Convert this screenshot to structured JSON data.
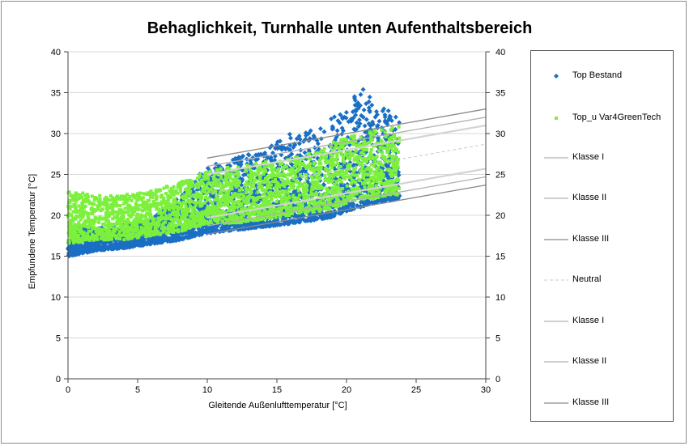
{
  "chart_data": {
    "type": "scatter",
    "title": "Behaglichkeit, Turnhalle unten Aufenthaltsbereich",
    "xlabel": "Gleitende Außenlufttemperatur  [°C]",
    "ylabel": "Empfundene Temperatur  [°C]",
    "xlim": [
      0,
      30
    ],
    "ylim": [
      0,
      40
    ],
    "xticks": [
      "0",
      "5",
      "10",
      "15",
      "20",
      "25",
      "30"
    ],
    "yticks": [
      "0",
      "5",
      "10",
      "15",
      "20",
      "25",
      "30",
      "35",
      "40"
    ],
    "y2ticks": [
      "0",
      "5",
      "10",
      "15",
      "20",
      "25",
      "30",
      "35",
      "40"
    ],
    "grid": "horizontal",
    "legend_position": "right",
    "colors": {
      "top_bestand": "#1a6fc4",
      "top_u": "#7cf03c",
      "klasse_i": "#d3d3d3",
      "klasse_ii": "#b0b0b0",
      "klasse_iii": "#8a8a8a",
      "neutral": "#c8c8c8"
    },
    "series": [
      {
        "name": "Top Bestand",
        "kind": "scatter-cloud",
        "marker": "diamond",
        "x": [
          0,
          2,
          4,
          6,
          8,
          10,
          12,
          14,
          16,
          18,
          19,
          20,
          21,
          22,
          23,
          23.8
        ],
        "y_low": [
          15.0,
          15.7,
          16.0,
          16.5,
          17.0,
          17.8,
          18.2,
          18.6,
          19.0,
          19.5,
          19.8,
          20.5,
          21.0,
          21.5,
          21.8,
          22.0
        ],
        "y_high": [
          18.5,
          18.5,
          18.8,
          19.5,
          22.5,
          26.0,
          27.0,
          28.0,
          30.0,
          30.5,
          32.0,
          33.0,
          35.8,
          34.0,
          33.0,
          32.5
        ]
      },
      {
        "name": "Top_u Var4GreenTech",
        "kind": "scatter-cloud",
        "marker": "square",
        "x": [
          0,
          2,
          4,
          6,
          8,
          10,
          12,
          14,
          16,
          18,
          19,
          20,
          21,
          22,
          23,
          23.8
        ],
        "y_low": [
          16.5,
          17.0,
          17.0,
          17.5,
          18.0,
          19.0,
          19.0,
          19.5,
          20.0,
          20.5,
          20.8,
          21.5,
          22.0,
          22.0,
          22.5,
          22.5
        ],
        "y_high": [
          23.0,
          22.5,
          22.5,
          23.0,
          24.0,
          25.5,
          26.0,
          26.5,
          27.0,
          28.0,
          29.0,
          29.5,
          30.0,
          30.5,
          30.5,
          31.0
        ]
      },
      {
        "name": "Klasse I",
        "kind": "line",
        "style": "solid",
        "width": 2.2,
        "color": "#d3d3d3",
        "x": [
          10,
          30
        ],
        "y": [
          25.0,
          31.0
        ]
      },
      {
        "name": "Klasse II",
        "kind": "line",
        "style": "solid",
        "width": 1.3,
        "color": "#b0b0b0",
        "x": [
          10,
          30
        ],
        "y": [
          26.0,
          32.0
        ]
      },
      {
        "name": "Klasse III",
        "kind": "line",
        "style": "solid",
        "width": 1.3,
        "color": "#8a8a8a",
        "x": [
          10,
          30
        ],
        "y": [
          27.0,
          33.0
        ]
      },
      {
        "name": "Neutral",
        "kind": "line",
        "style": "dashed",
        "width": 1.0,
        "color": "#c8c8c8",
        "x": [
          10,
          30
        ],
        "y": [
          22.7,
          28.7
        ]
      },
      {
        "name": "Klasse I",
        "kind": "line",
        "style": "solid",
        "width": 2.2,
        "color": "#d3d3d3",
        "x": [
          10,
          30
        ],
        "y": [
          19.7,
          25.7
        ]
      },
      {
        "name": "Klasse II",
        "kind": "line",
        "style": "solid",
        "width": 1.3,
        "color": "#b0b0b0",
        "x": [
          10,
          30
        ],
        "y": [
          18.7,
          24.7
        ]
      },
      {
        "name": "Klasse III",
        "kind": "line",
        "style": "solid",
        "width": 1.3,
        "color": "#8a8a8a",
        "x": [
          10,
          30
        ],
        "y": [
          17.7,
          23.7
        ]
      }
    ]
  }
}
